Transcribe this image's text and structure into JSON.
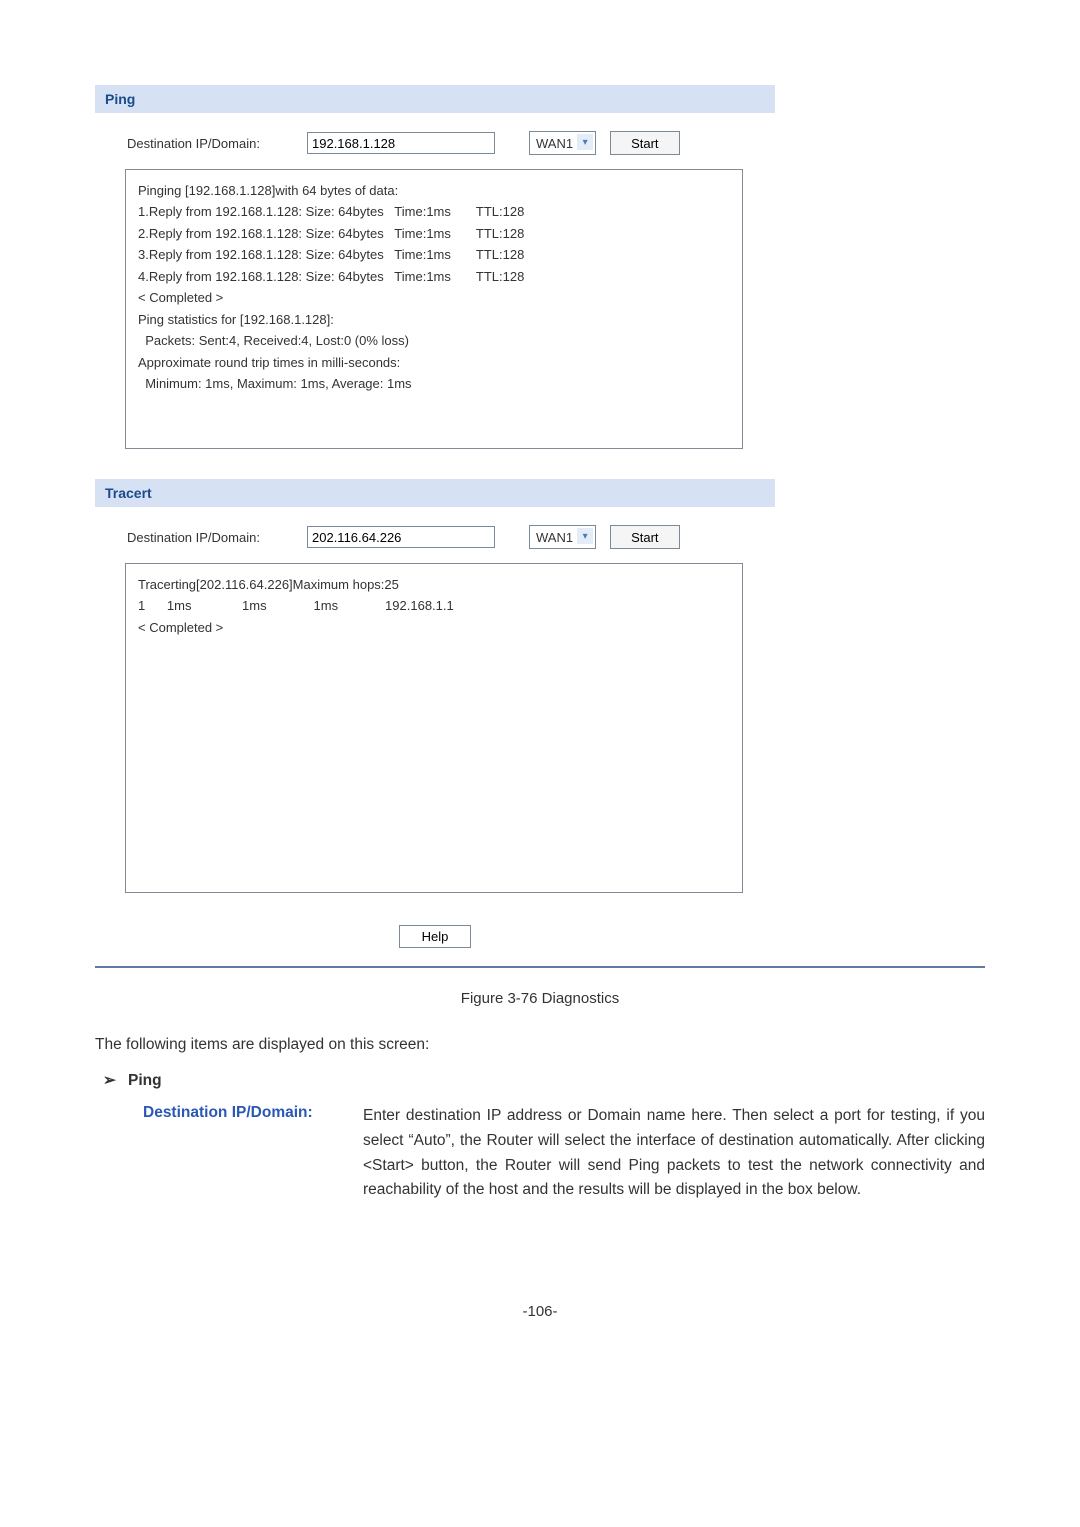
{
  "colors": {
    "section_header_bg": "#d6e2f3",
    "section_header_fg": "#1a4b8c",
    "border": "#7a8a99",
    "output_border": "#838c96",
    "hr": "#5c7ca3",
    "def_term": "#2a58b5"
  },
  "ping": {
    "title": "Ping",
    "dest_label": "Destination IP/Domain:",
    "dest_value": "192.168.1.128",
    "wan_selected": "WAN1",
    "start_label": "Start",
    "output": "Pinging [192.168.1.128]with 64 bytes of data:\n1.Reply from 192.168.1.128: Size: 64bytes   Time:1ms       TTL:128\n2.Reply from 192.168.1.128: Size: 64bytes   Time:1ms       TTL:128\n3.Reply from 192.168.1.128: Size: 64bytes   Time:1ms       TTL:128\n4.Reply from 192.168.1.128: Size: 64bytes   Time:1ms       TTL:128\n< Completed >\nPing statistics for [192.168.1.128]:\n  Packets: Sent:4, Received:4, Lost:0 (0% loss)\nApproximate round trip times in milli-seconds:\n  Minimum: 1ms, Maximum: 1ms, Average: 1ms"
  },
  "tracert": {
    "title": "Tracert",
    "dest_label": "Destination IP/Domain:",
    "dest_value": "202.116.64.226",
    "wan_selected": "WAN1",
    "start_label": "Start",
    "output": "Tracerting[202.116.64.226]Maximum hops:25\n1      1ms              1ms             1ms             192.168.1.1\n< Completed >"
  },
  "help_label": "Help",
  "caption": "Figure 3-76 Diagnostics",
  "intro": "The following items are displayed on this screen:",
  "bullet_label": "Ping",
  "def_term": "Destination IP/Domain:",
  "def_desc": "Enter destination IP address or Domain name here. Then select a port for testing, if you select “Auto”, the Router will select the interface of destination automatically. After clicking <Start> button, the Router will send Ping packets to test the network connectivity and reachability of the host and the results will be displayed in the box below.",
  "page_number": "-106-"
}
